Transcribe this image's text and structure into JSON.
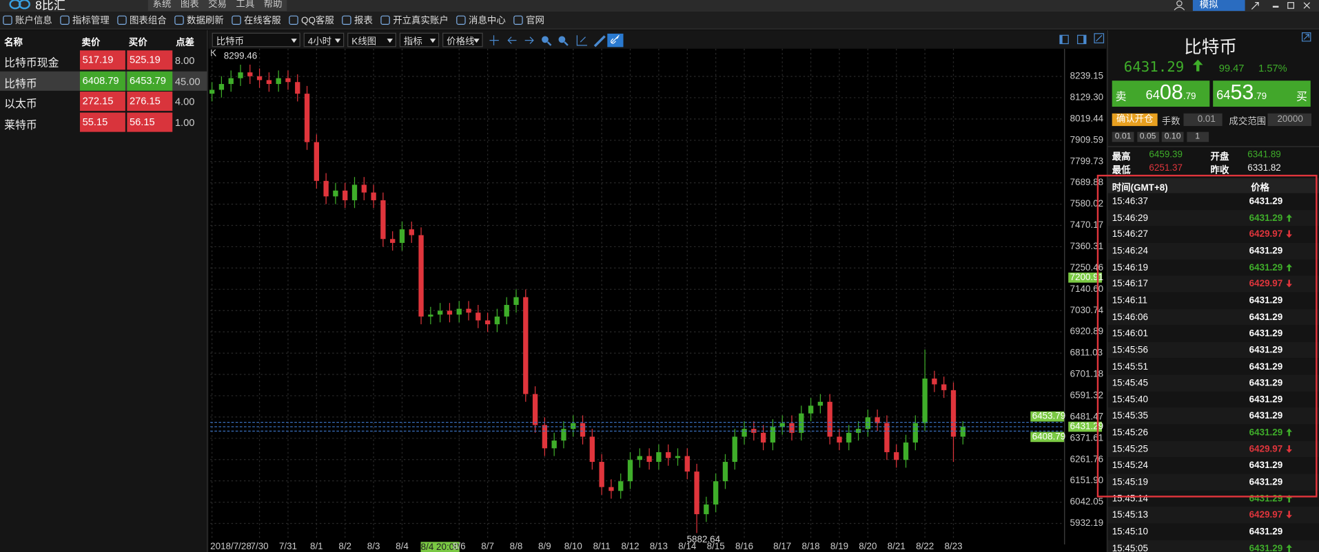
{
  "menubar": {
    "app_name": "8比汇",
    "menus": [
      "系统",
      "图表",
      "交易",
      "工具",
      "帮助"
    ],
    "account_mode": "模拟"
  },
  "toolbar": {
    "items": [
      "账户信息",
      "指标管理",
      "图表组合",
      "数据刷新",
      "在线客服",
      "QQ客服",
      "报表",
      "开立真实账户",
      "消息中心",
      "官网"
    ]
  },
  "watchlist": {
    "headers": [
      "名称",
      "卖价",
      "买价",
      "点差"
    ],
    "rows": [
      {
        "name": "比特币现金",
        "sell": "517.19",
        "buy": "525.19",
        "spread": "8.00",
        "color": "#d9343c"
      },
      {
        "name": "比特币",
        "sell": "6408.79",
        "buy": "6453.79",
        "spread": "45.00",
        "color": "#42a72b"
      },
      {
        "name": "以太币",
        "sell": "272.15",
        "buy": "276.15",
        "spread": "4.00",
        "color": "#d9343c"
      },
      {
        "name": "莱特币",
        "sell": "55.15",
        "buy": "56.15",
        "spread": "1.00",
        "color": "#d9343c"
      }
    ]
  },
  "chart_toolbar": {
    "dropdowns": [
      "比特币",
      "4小时",
      "K线图",
      "指标",
      "价格线"
    ]
  },
  "chart_data": {
    "type": "candlestick",
    "label": "K",
    "up_color": "#3fae2a",
    "down_color": "#e0353c",
    "grid": true,
    "ylim": [
      5850,
      8382
    ],
    "yticks": [
      8239.15,
      {
        "value": 8129.3,
        "label": "8129.30"
      },
      8019.44,
      7909.59,
      7799.73,
      7689.88,
      7580.02,
      7470.17,
      7360.31,
      7250.46,
      {
        "value": 7140.6,
        "label": "7140.60"
      },
      7030.74,
      6920.89,
      6811.03,
      6701.18,
      6591.32,
      6481.47,
      6371.61,
      6261.76,
      {
        "value": 6151.9,
        "label": "6151.90"
      },
      6042.05,
      5932.19
    ],
    "categories": [
      "2018/7/28",
      null,
      null,
      null,
      null,
      "7/30",
      null,
      null,
      "7/31",
      null,
      null,
      "8/1",
      null,
      null,
      "8/2",
      null,
      null,
      "8/3",
      null,
      null,
      "8/4",
      null,
      null,
      null,
      "8/4 20:00",
      null,
      "8/6",
      null,
      null,
      "8/7",
      null,
      null,
      "8/8",
      null,
      null,
      "8/9",
      null,
      null,
      "8/10",
      null,
      null,
      "8/11",
      null,
      null,
      "8/12",
      null,
      null,
      "8/13",
      null,
      null,
      "8/14",
      null,
      null,
      "8/15",
      null,
      null,
      "8/16",
      null,
      null,
      null,
      "8/17",
      null,
      null,
      "8/18",
      null,
      null,
      "8/19",
      null,
      null,
      "8/20",
      null,
      null,
      "8/21",
      null,
      null,
      "8/22",
      null,
      null,
      "8/23",
      null
    ],
    "crosshair_index": 24,
    "candles": [
      [
        8150,
        8210,
        8110,
        8170
      ],
      [
        8170,
        8240,
        8130,
        8200
      ],
      [
        8200,
        8270,
        8160,
        8230
      ],
      [
        8230,
        8299.46,
        8190,
        8260
      ],
      [
        8260,
        8300,
        8200,
        8240
      ],
      [
        8240,
        8280,
        8180,
        8220
      ],
      [
        8220,
        8260,
        8160,
        8200
      ],
      [
        8200,
        8270,
        8160,
        8230
      ],
      [
        8230,
        8270,
        8170,
        8210
      ],
      [
        8210,
        8250,
        8110,
        8150
      ],
      [
        8150,
        8190,
        7860,
        7900
      ],
      [
        7900,
        7940,
        7660,
        7700
      ],
      [
        7700,
        7740,
        7580,
        7620
      ],
      [
        7620,
        7690,
        7580,
        7650
      ],
      [
        7650,
        7690,
        7560,
        7600
      ],
      [
        7600,
        7720,
        7560,
        7680
      ],
      [
        7680,
        7720,
        7600,
        7640
      ],
      [
        7640,
        7680,
        7560,
        7600
      ],
      [
        7600,
        7640,
        7360,
        7400
      ],
      [
        7400,
        7440,
        7340,
        7380
      ],
      [
        7380,
        7490,
        7340,
        7450
      ],
      [
        7450,
        7490,
        7380,
        7420
      ],
      [
        7420,
        7460,
        6960,
        7000
      ],
      [
        7000,
        7050,
        6960,
        7010
      ],
      [
        7010,
        7070,
        6970,
        7030
      ],
      [
        7030,
        7070,
        6970,
        7010
      ],
      [
        7010,
        7080,
        6970,
        7040
      ],
      [
        7040,
        7080,
        6980,
        7020
      ],
      [
        7020,
        7060,
        6940,
        6980
      ],
      [
        6980,
        7020,
        6920,
        6960
      ],
      [
        6960,
        7040,
        6920,
        7000
      ],
      [
        7000,
        7100,
        6960,
        7060
      ],
      [
        7060,
        7140,
        7020,
        7100
      ],
      [
        7100,
        7140,
        6560,
        6600
      ],
      [
        6600,
        6640,
        6400,
        6440
      ],
      [
        6440,
        6480,
        6280,
        6320
      ],
      [
        6320,
        6400,
        6280,
        6360
      ],
      [
        6360,
        6460,
        6320,
        6420
      ],
      [
        6420,
        6490,
        6380,
        6450
      ],
      [
        6450,
        6490,
        6340,
        6380
      ],
      [
        6380,
        6420,
        6210,
        6250
      ],
      [
        6250,
        6290,
        6080,
        6120
      ],
      [
        6120,
        6160,
        6060,
        6100
      ],
      [
        6100,
        6190,
        6060,
        6150
      ],
      [
        6150,
        6300,
        6110,
        6260
      ],
      [
        6260,
        6320,
        6220,
        6280
      ],
      [
        6280,
        6320,
        6210,
        6250
      ],
      [
        6250,
        6340,
        6210,
        6300
      ],
      [
        6300,
        6340,
        6230,
        6270
      ],
      [
        6270,
        6320,
        6230,
        6280
      ],
      [
        6280,
        6320,
        6160,
        6200
      ],
      [
        6200,
        6240,
        5882.64,
        5980
      ],
      [
        5980,
        6070,
        5940,
        6030
      ],
      [
        6030,
        6190,
        5990,
        6150
      ],
      [
        6150,
        6290,
        6110,
        6250
      ],
      [
        6250,
        6420,
        6210,
        6380
      ],
      [
        6380,
        6460,
        6340,
        6420
      ],
      [
        6420,
        6460,
        6360,
        6400
      ],
      [
        6400,
        6440,
        6310,
        6350
      ],
      [
        6350,
        6470,
        6310,
        6430
      ],
      [
        6430,
        6490,
        6390,
        6450
      ],
      [
        6450,
        6490,
        6360,
        6400
      ],
      [
        6400,
        6540,
        6360,
        6500
      ],
      [
        6500,
        6580,
        6460,
        6540
      ],
      [
        6540,
        6600,
        6500,
        6560
      ],
      [
        6560,
        6600,
        6340,
        6380
      ],
      [
        6380,
        6420,
        6310,
        6350
      ],
      [
        6350,
        6440,
        6310,
        6400
      ],
      [
        6400,
        6460,
        6360,
        6420
      ],
      [
        6420,
        6520,
        6380,
        6480
      ],
      [
        6480,
        6520,
        6410,
        6450
      ],
      [
        6450,
        6490,
        6260,
        6300
      ],
      [
        6300,
        6340,
        6220,
        6260
      ],
      [
        6260,
        6390,
        6220,
        6350
      ],
      [
        6350,
        6490,
        6310,
        6450
      ],
      [
        6450,
        6830,
        6410,
        6680
      ],
      [
        6680,
        6720,
        6610,
        6650
      ],
      [
        6650,
        6690,
        6580,
        6620
      ],
      [
        6620,
        6660,
        6250,
        6380
      ],
      [
        6380,
        6460,
        6340,
        6431.29
      ]
    ],
    "price_markers": [
      7200.91,
      6453.79,
      6431.29,
      6408.79
    ],
    "marker_color": "#7ac943",
    "line_color": "#3b72c0"
  },
  "quote": {
    "symbol": "比特币",
    "last": "6431.29",
    "direction": "up",
    "change": "99.47",
    "change_pct": "1.57%",
    "sell": {
      "label": "卖",
      "head": "64",
      "big": "08",
      "tail": ".79"
    },
    "buy": {
      "label": "买",
      "head": "64",
      "big": "53",
      "tail": ".79"
    }
  },
  "order": {
    "button": "确认开仓",
    "lots_label": "手数",
    "lots": "0.01",
    "range_label": "成交范围",
    "range": "20000",
    "quick_lots": [
      "0.01",
      "0.05",
      "0.10",
      "1"
    ]
  },
  "stats": [
    {
      "label": "最高",
      "value": "6459.39",
      "color": "#3fae2a"
    },
    {
      "label": "开盘",
      "value": "6341.89",
      "color": "#3fae2a"
    },
    {
      "label": "最低",
      "value": "6251.37",
      "color": "#e0353c"
    },
    {
      "label": "昨收",
      "value": "6331.82",
      "color": "#eeeeee"
    }
  ],
  "ticks": {
    "headers": [
      "时间(GMT+8)",
      "价格"
    ],
    "rows": [
      [
        "15:46:37",
        "6431.29",
        null
      ],
      [
        "15:46:29",
        "6431.29",
        "up"
      ],
      [
        "15:46:27",
        "6429.97",
        "down"
      ],
      [
        "15:46:24",
        "6431.29",
        null
      ],
      [
        "15:46:19",
        "6431.29",
        "up"
      ],
      [
        "15:46:17",
        "6429.97",
        "down"
      ],
      [
        "15:46:11",
        "6431.29",
        null
      ],
      [
        "15:46:06",
        "6431.29",
        null
      ],
      [
        "15:46:01",
        "6431.29",
        null
      ],
      [
        "15:45:56",
        "6431.29",
        null
      ],
      [
        "15:45:51",
        "6431.29",
        null
      ],
      [
        "15:45:45",
        "6431.29",
        null
      ],
      [
        "15:45:40",
        "6431.29",
        null
      ],
      [
        "15:45:35",
        "6431.29",
        null
      ],
      [
        "15:45:26",
        "6431.29",
        "up"
      ],
      [
        "15:45:25",
        "6429.97",
        "down"
      ],
      [
        "15:45:24",
        "6431.29",
        null
      ],
      [
        "15:45:19",
        "6431.29",
        null
      ],
      [
        "15:45:14",
        "6431.29",
        "up"
      ],
      [
        "15:45:13",
        "6429.97",
        "down"
      ],
      [
        "15:45:10",
        "6431.29",
        null
      ],
      [
        "15:45:05",
        "6431.29",
        "up"
      ]
    ]
  }
}
